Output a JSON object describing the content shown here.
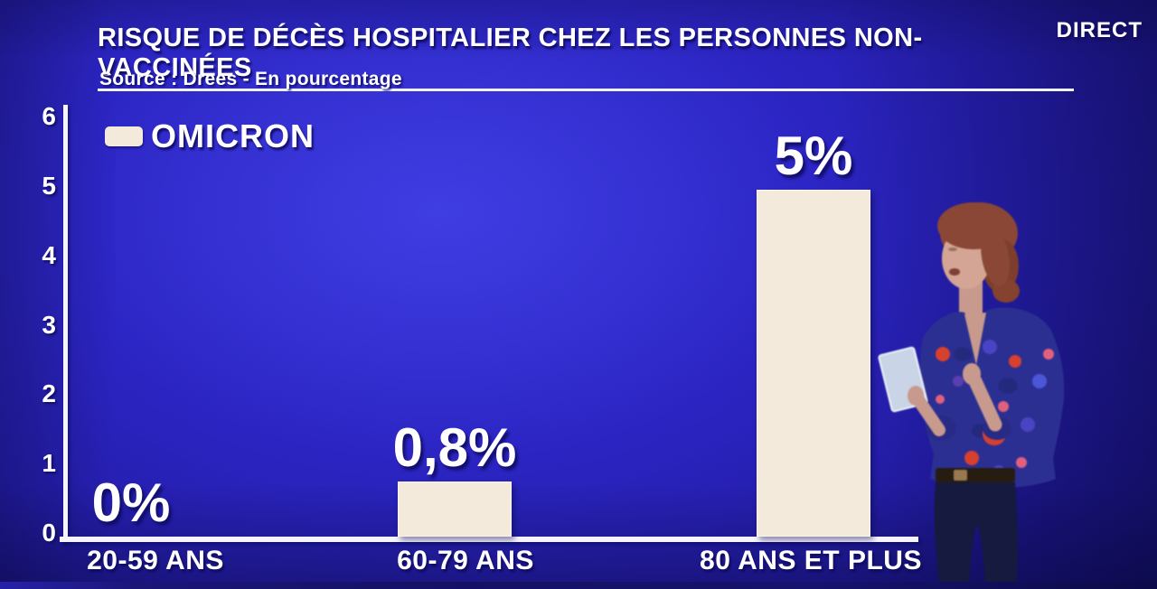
{
  "broadcast": {
    "live_badge": "DIRECT"
  },
  "header": {
    "title": "RISQUE DE DÉCÈS HOSPITALIER CHEZ LES PERSONNES NON-VACCINÉES",
    "source": "Source : Drees - En pourcentage"
  },
  "chart_data": {
    "type": "bar",
    "title": "RISQUE DE DÉCÈS HOSPITALIER CHEZ LES PERSONNES NON-VACCINÉES",
    "subtitle": "Source : Drees - En pourcentage",
    "categories": [
      "20-59 ANS",
      "60-79 ANS",
      "80 ANS ET PLUS"
    ],
    "series": [
      {
        "name": "OMICRON",
        "values": [
          0,
          0.8,
          5
        ]
      }
    ],
    "value_labels": [
      "0%",
      "0,8%",
      "5%"
    ],
    "xlabel": "",
    "ylabel": "",
    "ylim": [
      0,
      6
    ],
    "y_ticks": [
      "0",
      "1",
      "2",
      "3",
      "4",
      "5",
      "6"
    ],
    "grid": false,
    "legend_position": "top-left",
    "bar_color": "#f3eadb",
    "axis_color": "#f6f4ff",
    "background_color": "#2c25c4",
    "text_color": "#ffffff"
  }
}
